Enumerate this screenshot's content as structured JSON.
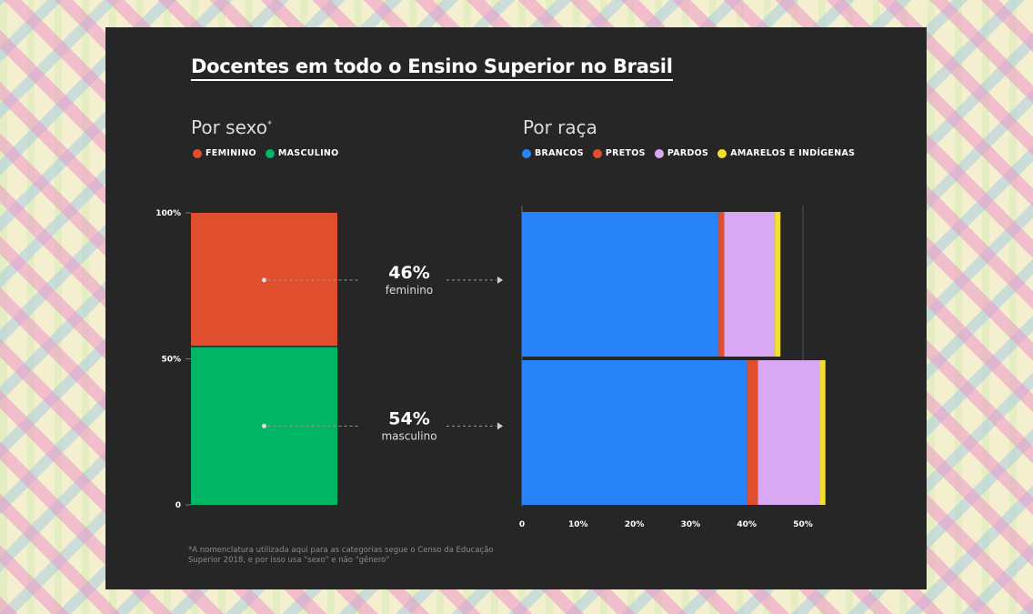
{
  "title": "Docentes em todo o Ensino Superior no Brasil",
  "left": {
    "subtitle": "Por sexo",
    "subtitle_mark": "*",
    "legend": [
      {
        "label": "FEMININO",
        "color": "#e04e2e"
      },
      {
        "label": "MASCULINO",
        "color": "#00b564"
      }
    ]
  },
  "right": {
    "subtitle": "Por raça",
    "legend": [
      {
        "label": "BRANCOS",
        "color": "#2882f8"
      },
      {
        "label": "PRETOS",
        "color": "#e04e2e"
      },
      {
        "label": "PARDOS",
        "color": "#d8a8f2"
      },
      {
        "label": "AMARELOS E INDÍGENAS",
        "color": "#f2e02c"
      }
    ]
  },
  "annotations": [
    {
      "value": "46%",
      "label": "feminino"
    },
    {
      "value": "54%",
      "label": "masculino"
    }
  ],
  "footnote": "*A nomenclatura utilizada aqui para as categorias segue o Censo da Educação Superior 2018, e por isso usa \"sexo\" e não \"gênero\"",
  "chart_data": [
    {
      "type": "bar",
      "stacked": true,
      "ylim": [
        0,
        100
      ],
      "yticks": [
        "0",
        "50%",
        "100%"
      ],
      "series": [
        {
          "name": "FEMININO",
          "value": 46,
          "color": "#e04e2e"
        },
        {
          "name": "MASCULINO",
          "value": 54,
          "color": "#00b564"
        }
      ]
    },
    {
      "type": "bar",
      "orientation": "horizontal",
      "stacked": true,
      "xlim": [
        0,
        54
      ],
      "xticks": [
        "0",
        "10%",
        "20%",
        "30%",
        "40%",
        "50%"
      ],
      "categories": [
        "feminino",
        "masculino"
      ],
      "series": [
        {
          "name": "BRANCOS",
          "color": "#2882f8",
          "values": [
            35,
            40
          ]
        },
        {
          "name": "PRETOS",
          "color": "#e04e2e",
          "values": [
            1,
            2
          ]
        },
        {
          "name": "PARDOS",
          "color": "#d8a8f2",
          "values": [
            9,
            11
          ]
        },
        {
          "name": "AMARELOS E INDÍGENAS",
          "color": "#f2e02c",
          "values": [
            1,
            1
          ]
        }
      ]
    }
  ]
}
